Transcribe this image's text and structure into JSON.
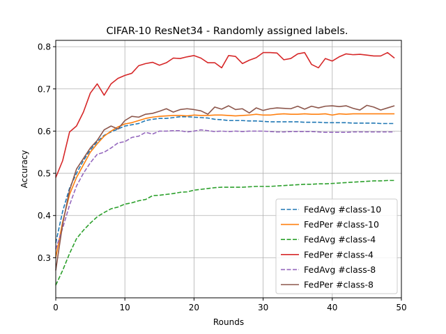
{
  "chart_data": {
    "type": "line",
    "title": "CIFAR-10 ResNet34 - Randomly assigned labels.",
    "xlabel": "Rounds",
    "ylabel": "Accuracy",
    "xlim": [
      0,
      50
    ],
    "ylim": [
      0.205,
      0.815
    ],
    "xticks": [
      0,
      10,
      20,
      30,
      40,
      50
    ],
    "yticks": [
      0.3,
      0.4,
      0.5,
      0.6,
      0.7,
      0.8
    ],
    "xtick_labels": [
      "0",
      "10",
      "20",
      "30",
      "40",
      "50"
    ],
    "ytick_labels": [
      "0.3",
      "0.4",
      "0.5",
      "0.6",
      "0.7",
      "0.8"
    ],
    "grid": true,
    "legend_position": "lower-right",
    "x": [
      0,
      1,
      2,
      3,
      4,
      5,
      6,
      7,
      8,
      9,
      10,
      11,
      12,
      13,
      14,
      15,
      16,
      17,
      18,
      19,
      20,
      21,
      22,
      23,
      24,
      25,
      26,
      27,
      28,
      29,
      30,
      31,
      32,
      33,
      34,
      35,
      36,
      37,
      38,
      39,
      40,
      41,
      42,
      43,
      44,
      45,
      46,
      47,
      48,
      49
    ],
    "series": [
      {
        "name": "FedAvg #class-10",
        "color": "#1f77b4",
        "dash": "dashed",
        "values": [
          0.335,
          0.41,
          0.465,
          0.5,
          0.53,
          0.555,
          0.575,
          0.59,
          0.598,
          0.605,
          0.612,
          0.615,
          0.618,
          0.625,
          0.628,
          0.63,
          0.63,
          0.632,
          0.634,
          0.634,
          0.633,
          0.632,
          0.631,
          0.628,
          0.627,
          0.625,
          0.625,
          0.625,
          0.624,
          0.624,
          0.623,
          0.622,
          0.622,
          0.622,
          0.622,
          0.622,
          0.621,
          0.621,
          0.621,
          0.62,
          0.62,
          0.62,
          0.62,
          0.619,
          0.619,
          0.619,
          0.619,
          0.618,
          0.618,
          0.618
        ]
      },
      {
        "name": "FedPer #class-10",
        "color": "#ff7f0e",
        "dash": "solid",
        "values": [
          0.3,
          0.385,
          0.45,
          0.49,
          0.52,
          0.55,
          0.57,
          0.588,
          0.6,
          0.61,
          0.617,
          0.62,
          0.625,
          0.63,
          0.633,
          0.635,
          0.636,
          0.637,
          0.637,
          0.636,
          0.638,
          0.637,
          0.637,
          0.638,
          0.638,
          0.637,
          0.636,
          0.637,
          0.638,
          0.64,
          0.638,
          0.638,
          0.64,
          0.641,
          0.64,
          0.64,
          0.641,
          0.64,
          0.64,
          0.641,
          0.638,
          0.641,
          0.64,
          0.641,
          0.641,
          0.641,
          0.641,
          0.641,
          0.641,
          0.641
        ]
      },
      {
        "name": "FedAvg #class-4",
        "color": "#2ca02c",
        "dash": "dashed",
        "values": [
          0.235,
          0.27,
          0.31,
          0.345,
          0.365,
          0.382,
          0.397,
          0.407,
          0.416,
          0.42,
          0.427,
          0.43,
          0.435,
          0.438,
          0.447,
          0.448,
          0.45,
          0.452,
          0.455,
          0.456,
          0.46,
          0.462,
          0.464,
          0.466,
          0.467,
          0.467,
          0.467,
          0.467,
          0.468,
          0.469,
          0.469,
          0.469,
          0.47,
          0.471,
          0.472,
          0.473,
          0.474,
          0.474,
          0.475,
          0.475,
          0.476,
          0.477,
          0.478,
          0.479,
          0.48,
          0.481,
          0.482,
          0.482,
          0.483,
          0.483
        ]
      },
      {
        "name": "FedPer #class-4",
        "color": "#d62728",
        "dash": "solid",
        "values": [
          0.49,
          0.53,
          0.598,
          0.612,
          0.645,
          0.69,
          0.712,
          0.685,
          0.712,
          0.725,
          0.732,
          0.737,
          0.755,
          0.76,
          0.763,
          0.756,
          0.762,
          0.773,
          0.772,
          0.776,
          0.779,
          0.773,
          0.762,
          0.762,
          0.75,
          0.779,
          0.777,
          0.76,
          0.768,
          0.774,
          0.786,
          0.786,
          0.785,
          0.769,
          0.772,
          0.783,
          0.786,
          0.758,
          0.75,
          0.772,
          0.766,
          0.776,
          0.783,
          0.781,
          0.782,
          0.78,
          0.778,
          0.778,
          0.786,
          0.773
        ]
      },
      {
        "name": "FedAvg #class-8",
        "color": "#9467bd",
        "dash": "dashed",
        "values": [
          0.32,
          0.37,
          0.425,
          0.47,
          0.5,
          0.525,
          0.545,
          0.55,
          0.56,
          0.572,
          0.575,
          0.585,
          0.588,
          0.597,
          0.593,
          0.6,
          0.6,
          0.601,
          0.601,
          0.598,
          0.6,
          0.603,
          0.601,
          0.599,
          0.6,
          0.599,
          0.6,
          0.599,
          0.6,
          0.6,
          0.6,
          0.599,
          0.598,
          0.598,
          0.599,
          0.599,
          0.599,
          0.599,
          0.598,
          0.597,
          0.597,
          0.597,
          0.597,
          0.598,
          0.598,
          0.598,
          0.598,
          0.598,
          0.598,
          0.598
        ]
      },
      {
        "name": "FedPer #class-8",
        "color": "#8c564b",
        "dash": "solid",
        "values": [
          0.27,
          0.38,
          0.46,
          0.51,
          0.535,
          0.56,
          0.578,
          0.603,
          0.612,
          0.605,
          0.625,
          0.635,
          0.633,
          0.64,
          0.642,
          0.647,
          0.653,
          0.645,
          0.651,
          0.653,
          0.651,
          0.648,
          0.64,
          0.657,
          0.652,
          0.66,
          0.651,
          0.653,
          0.643,
          0.655,
          0.649,
          0.653,
          0.655,
          0.654,
          0.653,
          0.659,
          0.652,
          0.659,
          0.655,
          0.659,
          0.66,
          0.658,
          0.66,
          0.654,
          0.65,
          0.661,
          0.657,
          0.65,
          0.655,
          0.66
        ]
      }
    ]
  }
}
